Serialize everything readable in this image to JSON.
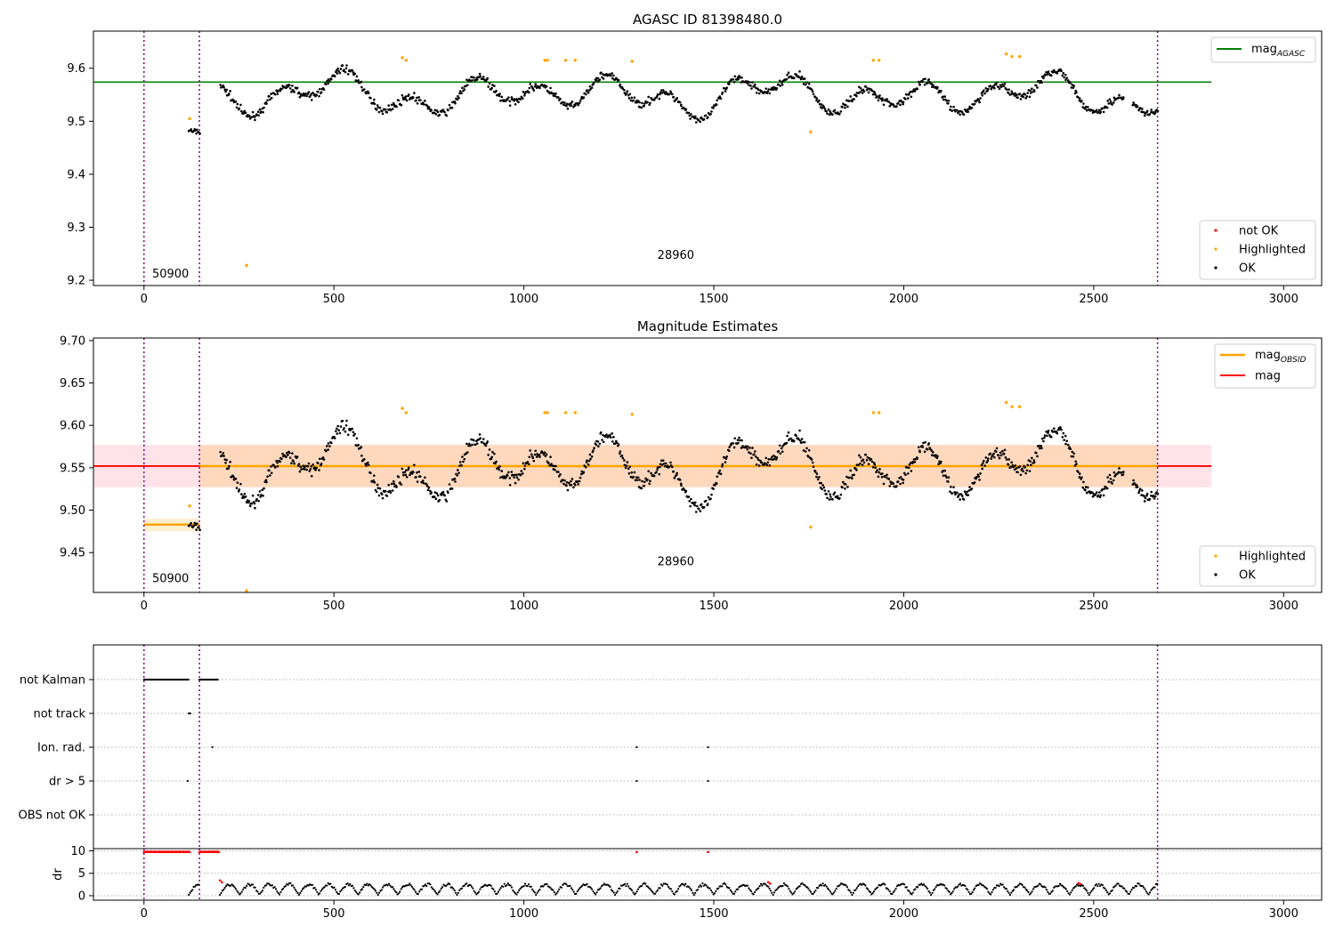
{
  "chart_data": [
    {
      "type": "scatter",
      "title": "AGASC ID 81398480.0",
      "xlim": [
        -133,
        3100
      ],
      "ylim": [
        9.19,
        9.67
      ],
      "xticks": [
        0,
        500,
        1000,
        1500,
        2000,
        2500,
        3000
      ],
      "yticks": [
        9.2,
        9.3,
        9.4,
        9.5,
        9.6
      ],
      "ytick_labels": [
        "9.2",
        "9.3",
        "9.4",
        "9.5",
        "9.6"
      ],
      "obsid_boundaries": [
        0,
        146,
        2668
      ],
      "obsid_labels": [
        {
          "x": 70,
          "y": 9.205,
          "text": "50900"
        },
        {
          "x": 1400,
          "y": 9.24,
          "text": "28960"
        }
      ],
      "hlines": [
        {
          "name": "mag_AGASC",
          "label_main": "mag",
          "label_sub": "AGASC",
          "y": 9.574,
          "x0": -133,
          "x1": 2810,
          "color": "#008000"
        }
      ],
      "series": [
        {
          "name": "not OK",
          "color": "#ff0000",
          "points": []
        },
        {
          "name": "Highlighted",
          "color": "#ffa500",
          "points": [
            [
              120,
              9.505
            ],
            [
              270,
              9.228
            ],
            [
              680,
              9.62
            ],
            [
              690,
              9.615
            ],
            [
              1055,
              9.615
            ],
            [
              1062,
              9.615
            ],
            [
              1110,
              9.615
            ],
            [
              1135,
              9.615
            ],
            [
              1285,
              9.613
            ],
            [
              1755,
              9.48
            ],
            [
              1920,
              9.615
            ],
            [
              1935,
              9.615
            ],
            [
              2270,
              9.627
            ],
            [
              2285,
              9.622
            ],
            [
              2305,
              9.622
            ]
          ]
        },
        {
          "name": "OK",
          "color": "#000000",
          "generated": true,
          "ranges": [
            [
              118,
              146
            ],
            [
              200,
              2668
            ]
          ]
        }
      ],
      "legends": [
        {
          "position": "upper-right",
          "entries": [
            "mag_AGASC"
          ]
        },
        {
          "position": "lower-right",
          "entries": [
            "not OK",
            "Highlighted",
            "OK"
          ]
        }
      ]
    },
    {
      "type": "scatter",
      "title": "Magnitude Estimates",
      "xlim": [
        -133,
        3100
      ],
      "ylim": [
        9.403,
        9.703
      ],
      "xticks": [
        0,
        500,
        1000,
        1500,
        2000,
        2500,
        3000
      ],
      "yticks": [
        9.45,
        9.5,
        9.55,
        9.6,
        9.65,
        9.7
      ],
      "ytick_labels": [
        "9.45",
        "9.50",
        "9.55",
        "9.60",
        "9.65",
        "9.70"
      ],
      "obsid_boundaries": [
        0,
        146,
        2668
      ],
      "obsid_labels": [
        {
          "x": 70,
          "y": 9.415,
          "text": "50900"
        },
        {
          "x": 1400,
          "y": 9.435,
          "text": "28960"
        }
      ],
      "mag": {
        "label": "mag",
        "value": 9.552,
        "band": [
          9.527,
          9.577
        ],
        "x0": -133,
        "x1": 2810,
        "color": "#ff0000",
        "band_color": "#ffc0cb"
      },
      "mag_obsid": [
        {
          "x0": 0,
          "x1": 146,
          "value": 9.483,
          "band": [
            9.475,
            9.49
          ]
        },
        {
          "x0": 146,
          "x1": 2668,
          "value": 9.552,
          "band": [
            9.527,
            9.577
          ]
        }
      ],
      "mag_obsid_label_main": "mag",
      "mag_obsid_label_sub": "OBSID",
      "series": [
        {
          "name": "Highlighted",
          "color": "#ffa500",
          "points": [
            [
              120,
              9.505
            ],
            [
              270,
              9.405
            ],
            [
              680,
              9.62
            ],
            [
              690,
              9.615
            ],
            [
              1055,
              9.615
            ],
            [
              1062,
              9.615
            ],
            [
              1110,
              9.615
            ],
            [
              1135,
              9.615
            ],
            [
              1285,
              9.613
            ],
            [
              1755,
              9.48
            ],
            [
              1920,
              9.615
            ],
            [
              1935,
              9.615
            ],
            [
              2270,
              9.627
            ],
            [
              2285,
              9.622
            ],
            [
              2305,
              9.622
            ]
          ]
        },
        {
          "name": "OK",
          "color": "#000000",
          "generated": true,
          "ranges": [
            [
              118,
              146
            ],
            [
              200,
              2668
            ]
          ]
        }
      ],
      "legends": [
        {
          "position": "upper-right",
          "entries": [
            "mag_OBSID",
            "mag"
          ]
        },
        {
          "position": "lower-right",
          "entries": [
            "Highlighted",
            "OK"
          ]
        }
      ]
    },
    {
      "type": "scatter",
      "title": "",
      "xlim": [
        -133,
        3100
      ],
      "obsid_boundaries": [
        0,
        146,
        2668
      ],
      "flag_rows": [
        {
          "label": "not Kalman",
          "ranges": [
            [
              0,
              118
            ],
            [
              146,
              195
            ]
          ]
        },
        {
          "label": "not track",
          "points": [
            118,
            122
          ]
        },
        {
          "label": "Ion. rad.",
          "points": [
            180,
            1297,
            1485
          ]
        },
        {
          "label": "dr > 5",
          "points": [
            115,
            1297,
            1485
          ]
        },
        {
          "label": "OBS not OK",
          "points": []
        }
      ]
    },
    {
      "type": "scatter",
      "title": "",
      "xlim": [
        -133,
        3100
      ],
      "ylim": [
        -1,
        10.5
      ],
      "xticks": [
        0,
        500,
        1000,
        1500,
        2000,
        2500,
        3000
      ],
      "yticks": [
        0,
        5,
        10
      ],
      "ytick_labels": [
        "0",
        "5",
        "10"
      ],
      "ylabel": "dr",
      "obsid_boundaries": [
        0,
        146,
        2668
      ],
      "clip_ranges": [
        [
          0,
          120
        ],
        [
          146,
          198
        ]
      ],
      "clip_points": [
        1297,
        1485
      ],
      "clip_value": 9.8,
      "red_points": [
        [
          200,
          3.4
        ],
        [
          205,
          3.0
        ],
        [
          1643,
          3.0
        ],
        [
          1648,
          2.7
        ],
        [
          2460,
          2.8
        ],
        [
          2466,
          2.6
        ]
      ],
      "series": [
        {
          "name": "dr",
          "color": "#000000",
          "generated": true,
          "ranges": [
            [
              118,
              146
            ],
            [
              200,
              2668
            ]
          ]
        }
      ]
    }
  ]
}
